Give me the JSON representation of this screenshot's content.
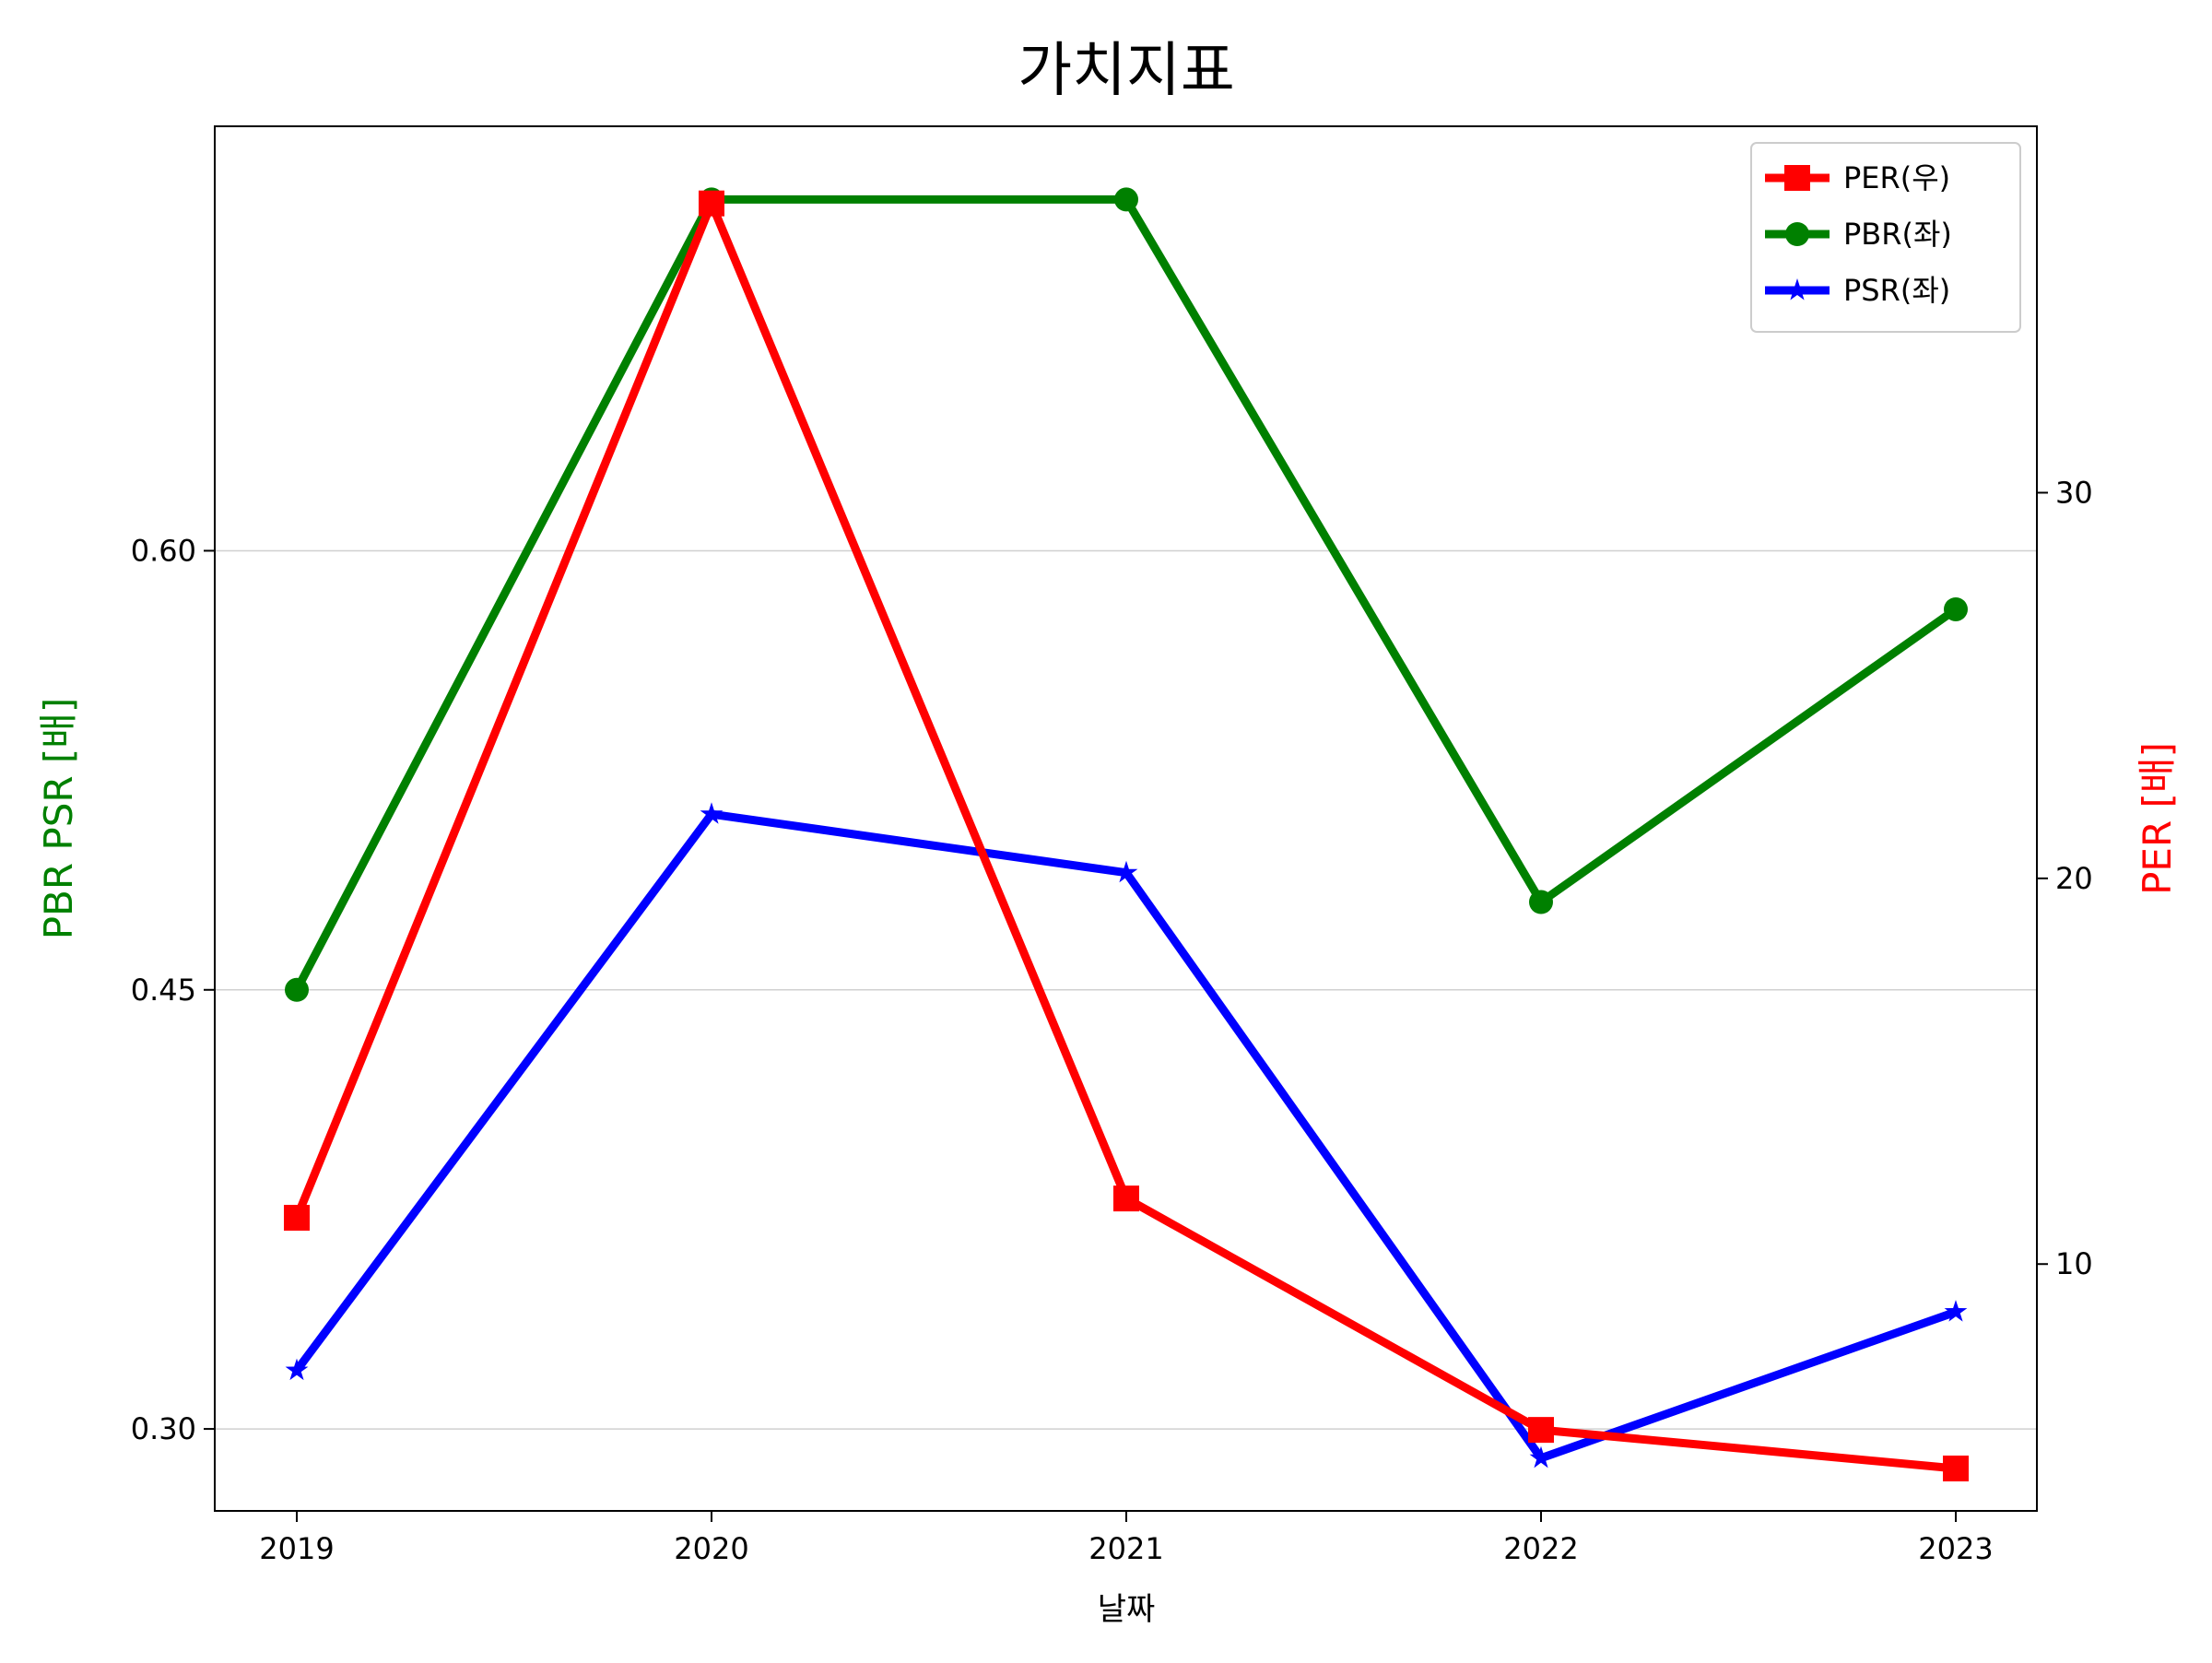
{
  "chart_data": {
    "type": "line",
    "title": "가치지표",
    "xlabel": "날짜",
    "ylabel_left": "PBR PSR [배]",
    "ylabel_right": "PER [배]",
    "categories": [
      "2019",
      "2020",
      "2021",
      "2022",
      "2023"
    ],
    "left_axis": {
      "ylim": [
        0.272,
        0.745
      ],
      "ticks": [
        0.3,
        0.45,
        0.6
      ],
      "tick_labels": [
        "0.30",
        "0.45",
        "0.60"
      ],
      "color": "#008000"
    },
    "right_axis": {
      "ylim": [
        3.6,
        39.5
      ],
      "ticks": [
        10,
        20,
        30
      ],
      "tick_labels": [
        "10",
        "20",
        "30"
      ],
      "color": "#ff0000"
    },
    "grid": "horizontal, left axis",
    "legend_position": "top-right",
    "series": [
      {
        "name": "PER(우)",
        "axis": "right",
        "color": "#ff0000",
        "marker": "square",
        "values": [
          11.2,
          37.5,
          11.7,
          5.7,
          4.7
        ]
      },
      {
        "name": "PBR(좌)",
        "axis": "left",
        "color": "#008000",
        "marker": "circle",
        "values": [
          0.45,
          0.72,
          0.72,
          0.48,
          0.58
        ]
      },
      {
        "name": "PSR(좌)",
        "axis": "left",
        "color": "#0000ff",
        "marker": "star",
        "values": [
          0.32,
          0.51,
          0.49,
          0.29,
          0.34
        ]
      }
    ]
  }
}
